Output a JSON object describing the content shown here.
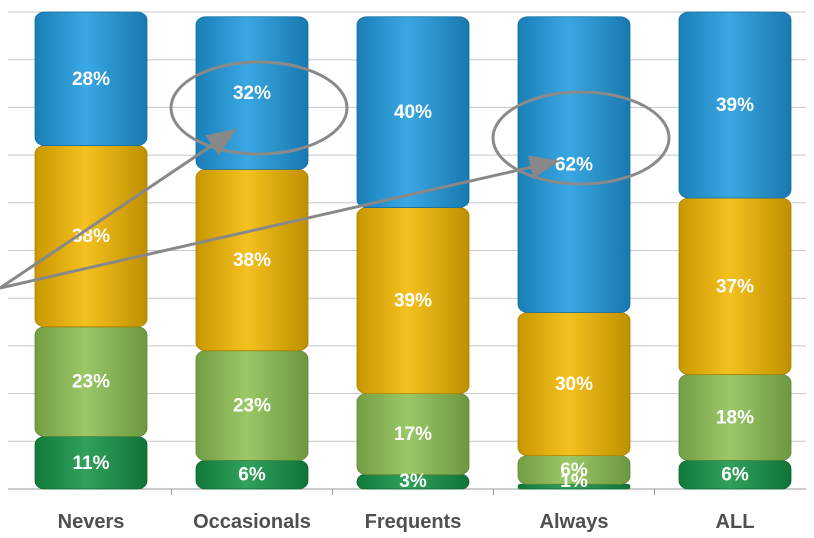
{
  "chart_data": {
    "type": "bar",
    "stacked": true,
    "percent_stacked": true,
    "categories": [
      "Nevers",
      "Occasionals",
      "Frequents",
      "Always",
      "ALL"
    ],
    "series": [
      {
        "values": [
          11,
          6,
          3,
          1,
          6
        ],
        "color": "#159447"
      },
      {
        "values": [
          23,
          23,
          17,
          6,
          18
        ],
        "color": "#8cc152"
      },
      {
        "values": [
          38,
          38,
          39,
          30,
          37
        ],
        "color": "#f4b800"
      },
      {
        "values": [
          28,
          32,
          40,
          62,
          39
        ],
        "color": "#1f9bdf"
      }
    ],
    "data_labels": [
      [
        "11%",
        "6%",
        "3%",
        "1%",
        "6%"
      ],
      [
        "23%",
        "23%",
        "17%",
        "6%",
        "18%"
      ],
      [
        "38%",
        "38%",
        "39%",
        "30%",
        "37%"
      ],
      [
        "28%",
        "32%",
        "40%",
        "62%",
        "39%"
      ]
    ],
    "ylim": [
      0,
      100
    ],
    "grid": true,
    "annotations": {
      "highlighted": [
        [
          "Occasionals",
          3
        ],
        [
          "Always",
          3
        ]
      ],
      "arrows_from": "left"
    }
  }
}
